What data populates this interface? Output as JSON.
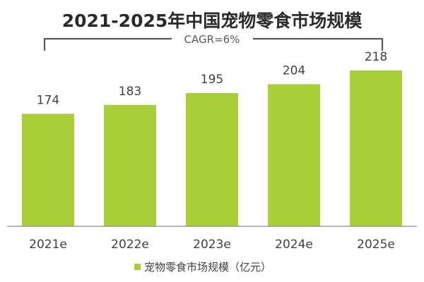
{
  "chart_data": {
    "type": "bar",
    "title": "2021-2025年中国宠物零食市场规模",
    "annotation": "CAGR=6%",
    "categories": [
      "2021e",
      "2022e",
      "2023e",
      "2024e",
      "2025e"
    ],
    "series": [
      {
        "name": "宠物零食市场规模（亿元）",
        "values": [
          174,
          183,
          195,
          204,
          218
        ],
        "color": "#a9cf38"
      }
    ],
    "data_labels": [
      "174",
      "183",
      "195",
      "204",
      "218"
    ],
    "ylim": [
      60,
      220
    ],
    "grid": false,
    "legend": "bottom-center"
  },
  "colors": {
    "bar": "#a9cf38",
    "axis": "#8c8c8c",
    "bracket": "#595959"
  }
}
